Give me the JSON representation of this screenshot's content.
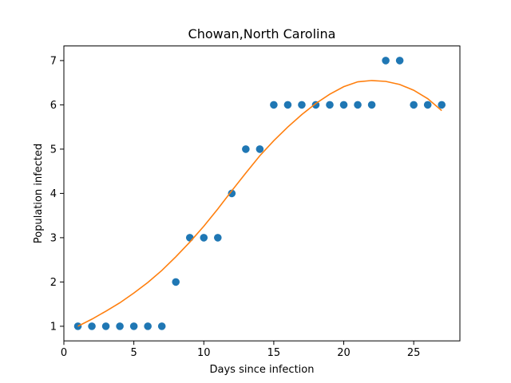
{
  "chart_data": {
    "type": "scatter",
    "title": "Chowan,North Carolina",
    "xlabel": "Days since infection",
    "ylabel": "Population infected",
    "xlim": [
      0,
      28.3
    ],
    "ylim": [
      0.67,
      7.33
    ],
    "xticks": [
      0,
      5,
      10,
      15,
      20,
      25
    ],
    "yticks": [
      1,
      2,
      3,
      4,
      5,
      6,
      7
    ],
    "grid": false,
    "series": [
      {
        "kind": "scatter",
        "color": "#1f77b4",
        "x": [
          1,
          2,
          3,
          4,
          5,
          6,
          7,
          8,
          9,
          10,
          11,
          12,
          13,
          14,
          15,
          16,
          17,
          18,
          19,
          20,
          21,
          22,
          23,
          24,
          25,
          26,
          27
        ],
        "y": [
          1,
          1,
          1,
          1,
          1,
          1,
          1,
          2,
          3,
          3,
          3,
          4,
          5,
          5,
          6,
          6,
          6,
          6,
          6,
          6,
          6,
          6,
          7,
          7,
          6,
          6,
          6
        ]
      },
      {
        "kind": "line",
        "color": "#ff7f0e",
        "x": [
          1,
          2,
          3,
          4,
          5,
          6,
          7,
          8,
          9,
          10,
          11,
          12,
          13,
          14,
          15,
          16,
          17,
          18,
          19,
          20,
          21,
          22,
          23,
          24,
          25,
          26,
          27
        ],
        "y": [
          1.0,
          1.16,
          1.34,
          1.53,
          1.75,
          1.99,
          2.26,
          2.57,
          2.9,
          3.26,
          3.65,
          4.06,
          4.46,
          4.85,
          5.19,
          5.5,
          5.78,
          6.03,
          6.24,
          6.41,
          6.52,
          6.55,
          6.53,
          6.46,
          6.33,
          6.14,
          5.87
        ]
      }
    ]
  }
}
